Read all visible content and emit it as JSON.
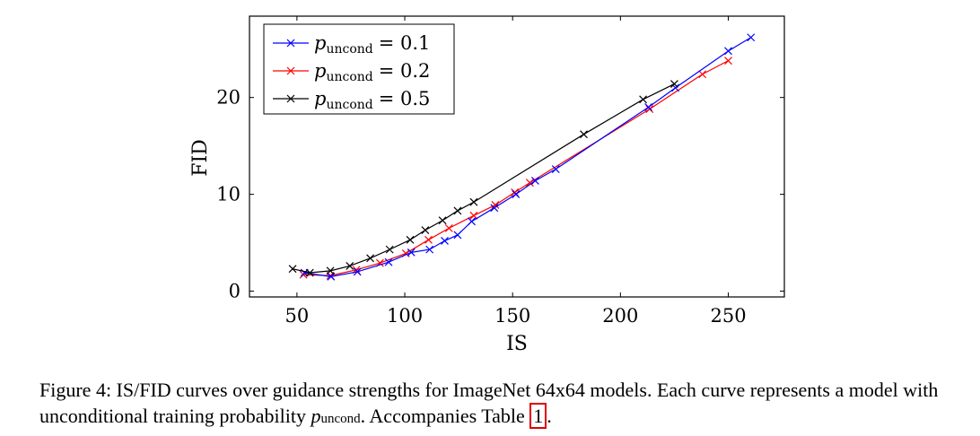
{
  "chart_data": {
    "type": "line",
    "title": "",
    "xlabel": "IS",
    "ylabel": "FID",
    "xlim": [
      28,
      276
    ],
    "ylim": [
      -0.6,
      28.4
    ],
    "xticks": [
      50,
      100,
      150,
      200,
      250
    ],
    "yticks": [
      0,
      10,
      20
    ],
    "grid": false,
    "legend_position": "top-left",
    "series": [
      {
        "legend_symbol": "p",
        "legend_subscript": "uncond",
        "legend_value": "= 0.1",
        "color": "#0000ff",
        "marker": "x",
        "x": [
          53.5,
          65.8,
          78.0,
          92.5,
          103.0,
          111.5,
          118.5,
          124.5,
          131.0,
          141.5,
          151.5,
          160.5,
          170.0,
          213.0,
          225.5,
          250.0,
          260.5
        ],
        "y": [
          1.9,
          1.5,
          2.0,
          3.0,
          4.0,
          4.3,
          5.2,
          5.8,
          7.2,
          8.6,
          10.0,
          11.4,
          12.6,
          19.0,
          21.0,
          24.8,
          26.2
        ]
      },
      {
        "legend_symbol": "p",
        "legend_subscript": "uncond",
        "legend_value": "= 0.2",
        "color": "#ff0000",
        "marker": "x",
        "x": [
          53.0,
          65.5,
          77.5,
          88.5,
          100.5,
          111.0,
          120.5,
          132.0,
          142.0,
          151.0,
          158.0,
          213.5,
          238.0,
          250.0
        ],
        "y": [
          1.7,
          1.6,
          2.2,
          2.9,
          3.9,
          5.3,
          6.5,
          7.8,
          8.9,
          10.2,
          11.2,
          18.8,
          22.4,
          23.8
        ]
      },
      {
        "legend_symbol": "p",
        "legend_subscript": "uncond",
        "legend_value": "= 0.5",
        "color": "#000000",
        "marker": "x",
        "x": [
          48.0,
          56.0,
          65.5,
          74.5,
          84.0,
          93.0,
          102.5,
          109.5,
          117.5,
          124.5,
          132.0,
          183.0,
          210.5,
          225.0
        ],
        "y": [
          2.3,
          1.9,
          2.1,
          2.6,
          3.4,
          4.3,
          5.3,
          6.3,
          7.3,
          8.3,
          9.2,
          16.2,
          19.8,
          21.4
        ]
      }
    ]
  },
  "caption": {
    "part1": "Figure 4: IS/FID curves over guidance strengths for ImageNet 64x64 models. Each curve represents a model with unconditional training probability ",
    "math_symbol": "p",
    "math_subscript": "uncond",
    "part2": ". Accompanies Table ",
    "table_ref": "1",
    "part3": "."
  }
}
